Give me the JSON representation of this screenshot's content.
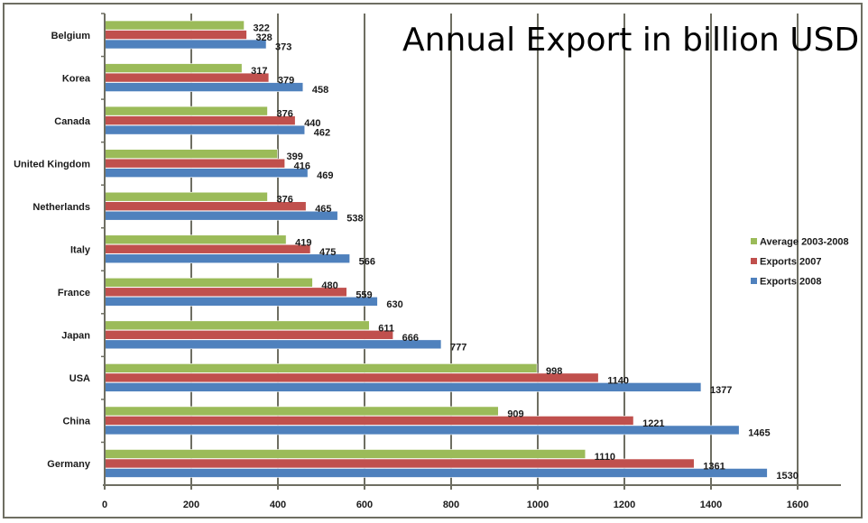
{
  "chart_data": {
    "type": "bar",
    "orientation": "horizontal",
    "title": "Annual Export in billion USD",
    "xlabel": "",
    "ylabel": "",
    "xlim": [
      0,
      1700
    ],
    "ticks": [
      0,
      200,
      400,
      600,
      800,
      1000,
      1200,
      1400,
      1600
    ],
    "tick_labels": [
      "0",
      "200",
      "400",
      "600",
      "800",
      "1000",
      "1200",
      "1400",
      "1600"
    ],
    "grid": "vertical major gridlines",
    "legend_position": "right",
    "categories": [
      "Belgium",
      "Korea",
      "Canada",
      "United Kingdom",
      "Netherlands",
      "Italy",
      "France",
      "Japan",
      "USA",
      "China",
      "Germany"
    ],
    "series": [
      {
        "name": "Average  2003-2008",
        "color": "#9bbb59",
        "values": [
          322,
          317,
          376,
          399,
          376,
          419,
          480,
          611,
          998,
          909,
          1110
        ]
      },
      {
        "name": "Exports 2007",
        "color": "#c0504d",
        "values": [
          328,
          379,
          440,
          416,
          465,
          475,
          559,
          666,
          1140,
          1221,
          1361
        ]
      },
      {
        "name": "Exports 2008",
        "color": "#4f81bd",
        "values": [
          373,
          458,
          462,
          469,
          538,
          566,
          630,
          777,
          1377,
          1465,
          1530
        ]
      }
    ],
    "legend": [
      "Average  2003-2008",
      "Exports 2007",
      "Exports 2008"
    ]
  },
  "colors": {
    "frame": "#6e6e62",
    "gridline": "#6e6e62",
    "axis": "#6e6e62"
  }
}
